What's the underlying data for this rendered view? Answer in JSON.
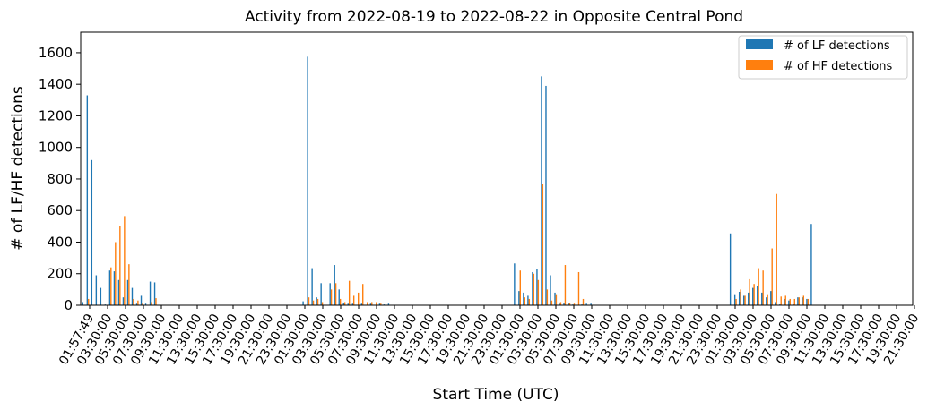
{
  "chart_data": {
    "type": "bar",
    "title": "Activity from 2022-08-19 to 2022-08-22 in Opposite Central Pond",
    "xlabel": "Start Time (UTC)",
    "ylabel": "# of LF/HF detections",
    "ylim": [
      0,
      1730
    ],
    "yticks": [
      0,
      200,
      400,
      600,
      800,
      1000,
      1200,
      1400,
      1600
    ],
    "xticks": [
      "01:57:49",
      "03:30:00",
      "05:30:00",
      "07:30:00",
      "09:30:00",
      "11:30:00",
      "13:30:00",
      "15:30:00",
      "17:30:00",
      "19:30:00",
      "21:30:00",
      "23:30:00",
      "01:30:00",
      "03:30:00",
      "05:30:00",
      "07:30:00",
      "09:30:00",
      "11:30:00",
      "13:30:00",
      "15:30:00",
      "17:30:00",
      "19:30:00",
      "21:30:00",
      "23:30:00",
      "01:30:00",
      "03:30:00",
      "05:30:00",
      "07:30:00",
      "09:30:00",
      "11:30:00",
      "13:30:00",
      "15:30:00",
      "17:30:00",
      "19:30:00",
      "21:30:00",
      "23:30:00",
      "01:30:00",
      "03:30:00",
      "05:30:00",
      "07:30:00",
      "09:30:00",
      "11:30:00",
      "13:30:00",
      "15:30:00",
      "17:30:00",
      "19:30:00",
      "21:30:00"
    ],
    "legend_position": "top-right",
    "grid": false,
    "series": [
      {
        "name": "# of LF detections",
        "color": "#1f77b4",
        "values": [
          20,
          1330,
          920,
          190,
          110,
          5,
          220,
          215,
          160,
          50,
          160,
          110,
          10,
          60,
          10,
          150,
          145,
          0,
          0,
          0,
          0,
          0,
          0,
          0,
          0,
          0,
          0,
          0,
          0,
          0,
          0,
          0,
          0,
          0,
          0,
          0,
          0,
          0,
          0,
          0,
          0,
          0,
          0,
          0,
          0,
          0,
          0,
          0,
          0,
          25,
          1575,
          235,
          50,
          140,
          0,
          140,
          255,
          100,
          15,
          10,
          10,
          0,
          10,
          0,
          10,
          0,
          10,
          5,
          10,
          0,
          0,
          0,
          0,
          0,
          0,
          0,
          0,
          0,
          0,
          0,
          0,
          0,
          0,
          0,
          0,
          0,
          0,
          0,
          0,
          0,
          0,
          0,
          0,
          0,
          0,
          0,
          265,
          90,
          80,
          60,
          210,
          230,
          1450,
          1390,
          190,
          80,
          10,
          15,
          15,
          5,
          0,
          5,
          10,
          10,
          0,
          0,
          0,
          0,
          0,
          0,
          0,
          0,
          0,
          0,
          0,
          0,
          0,
          0,
          0,
          0,
          0,
          0,
          0,
          0,
          0,
          0,
          0,
          0,
          0,
          0,
          0,
          0,
          0,
          0,
          455,
          70,
          85,
          60,
          80,
          110,
          120,
          80,
          50,
          90,
          20,
          5,
          40,
          30,
          5,
          50,
          50,
          40,
          515,
          0,
          0,
          0,
          0,
          0,
          0,
          0,
          0,
          0,
          0,
          0,
          0,
          0,
          0,
          0,
          0,
          0,
          0,
          0,
          0,
          0
        ]
      },
      {
        "name": "# of HF detections",
        "color": "#ff7f0e",
        "values": [
          0,
          40,
          0,
          0,
          0,
          0,
          240,
          400,
          500,
          565,
          260,
          40,
          30,
          10,
          0,
          20,
          45,
          0,
          0,
          0,
          0,
          0,
          0,
          0,
          0,
          0,
          0,
          0,
          0,
          0,
          0,
          0,
          0,
          0,
          0,
          0,
          0,
          0,
          0,
          0,
          0,
          0,
          0,
          0,
          0,
          0,
          0,
          0,
          0,
          0,
          50,
          30,
          40,
          20,
          0,
          100,
          140,
          40,
          20,
          155,
          60,
          80,
          135,
          20,
          20,
          20,
          10,
          0,
          0,
          0,
          0,
          0,
          0,
          0,
          0,
          0,
          0,
          0,
          0,
          0,
          0,
          0,
          0,
          0,
          0,
          0,
          0,
          0,
          0,
          0,
          0,
          0,
          0,
          0,
          0,
          0,
          0,
          220,
          50,
          40,
          200,
          160,
          770,
          100,
          30,
          70,
          20,
          255,
          15,
          10,
          210,
          40,
          0,
          0,
          0,
          0,
          0,
          0,
          0,
          0,
          0,
          0,
          0,
          0,
          0,
          0,
          0,
          0,
          0,
          0,
          0,
          0,
          0,
          0,
          0,
          0,
          0,
          0,
          0,
          0,
          0,
          0,
          0,
          0,
          0,
          40,
          100,
          60,
          165,
          135,
          235,
          220,
          70,
          360,
          705,
          55,
          60,
          40,
          40,
          50,
          60,
          40,
          0,
          0,
          0,
          0,
          0,
          0,
          0,
          0,
          0,
          0,
          0,
          0,
          0,
          0,
          0,
          0,
          0,
          0,
          0,
          0,
          0
        ]
      }
    ]
  }
}
